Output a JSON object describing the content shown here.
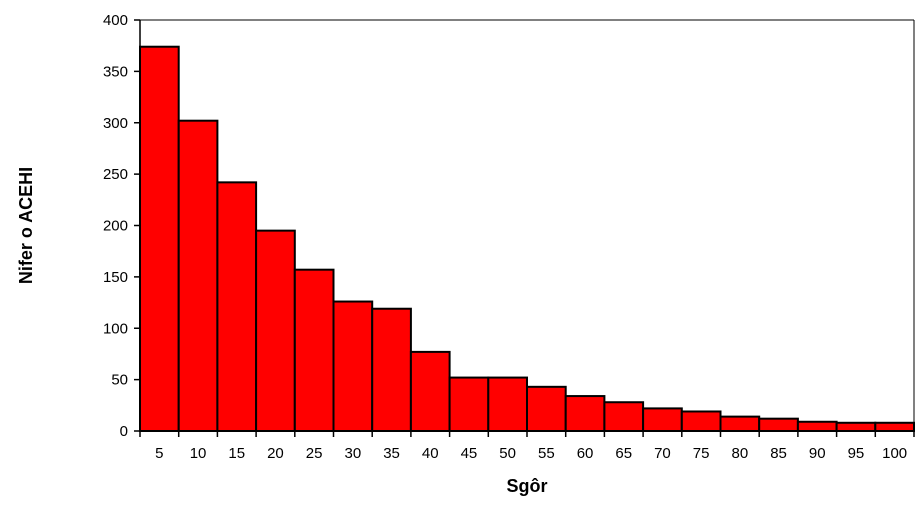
{
  "chart_data": {
    "type": "bar",
    "xlabel": "Sgôr",
    "ylabel": "Nifer o ACEHI",
    "categories": [
      "5",
      "10",
      "15",
      "20",
      "25",
      "30",
      "35",
      "40",
      "45",
      "50",
      "55",
      "60",
      "65",
      "70",
      "75",
      "80",
      "85",
      "90",
      "95",
      "100"
    ],
    "values": [
      374,
      302,
      242,
      195,
      157,
      126,
      119,
      77,
      52,
      52,
      43,
      34,
      28,
      22,
      19,
      14,
      12,
      9,
      8,
      8
    ],
    "ylim": [
      0,
      400
    ],
    "yticks": [
      "0",
      "50",
      "100",
      "150",
      "200",
      "250",
      "300",
      "350",
      "400"
    ],
    "grid": false,
    "legend": "none",
    "bar_color": "#ff0000",
    "bar_stroke": "#000000"
  }
}
